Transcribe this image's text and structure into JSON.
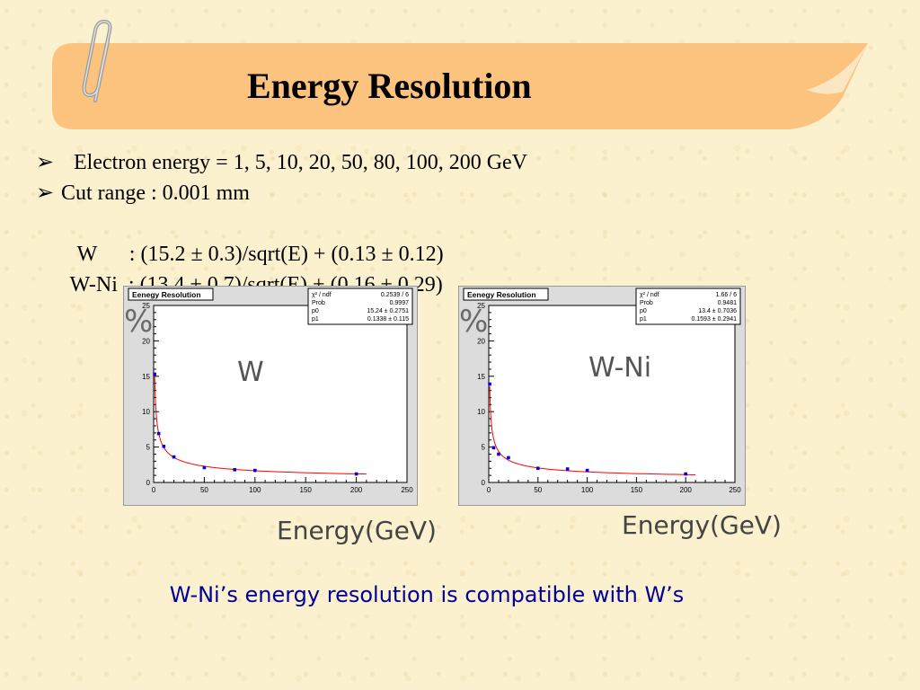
{
  "slide": {
    "title": "Energy Resolution",
    "colors": {
      "banner": "#fbc37e",
      "banner_fold": "#fbe6c4",
      "conclusion": "#000099",
      "fit_line": "#ff0000",
      "points": "#0000dd"
    },
    "bullets": [
      {
        "marker": "arrow",
        "text": "Electron energy =  1, 5, 10, 20, 50, 80, 100, 200 GeV"
      },
      {
        "marker": "arrow",
        "text": "Cut range : 0.001 mm"
      },
      {
        "marker": "none",
        "text": "W      : (15.2 ± 0.3)/sqrt(E) + (0.13 ± 0.12)"
      },
      {
        "marker": "none",
        "text": "W-Ni  : (13.4 ± 0.7)/sqrt(E) + (0.16 ± 0.29)"
      }
    ],
    "conclusion": "W-Ni’s energy resolution is compatible with W’s"
  },
  "chart_data": [
    {
      "type": "scatter",
      "title": "Eenegy Resolution",
      "annotation_material": "W",
      "y_unit_label": "%",
      "x_axis_caption": "Energy(GeV)",
      "xlim": [
        0,
        250
      ],
      "ylim": [
        0,
        25
      ],
      "xticks": [
        0,
        50,
        100,
        150,
        200,
        250
      ],
      "yticks": [
        0,
        5,
        10,
        15,
        20,
        25
      ],
      "stats": [
        {
          "label": "χ² / ndf",
          "value": "0.2539 / 6"
        },
        {
          "label": "Prob",
          "value": "0.9997"
        },
        {
          "label": "p0",
          "value": "15.24 ± 0.2751"
        },
        {
          "label": "p1",
          "value": "0.1338 ± 0.115"
        }
      ],
      "fit": {
        "p0": 15.24,
        "p1": 0.1338,
        "xrange": [
          1,
          210
        ]
      },
      "series": [
        {
          "x": [
            1,
            5,
            10,
            20,
            50,
            80,
            100,
            200
          ],
          "y": [
            15.3,
            6.9,
            5.1,
            3.6,
            2.1,
            1.8,
            1.7,
            1.2
          ]
        }
      ]
    },
    {
      "type": "scatter",
      "title": "Eenegy Resolution",
      "annotation_material": "W-Ni",
      "y_unit_label": "%",
      "x_axis_caption": "Energy(GeV)",
      "xlim": [
        0,
        250
      ],
      "ylim": [
        0,
        25
      ],
      "xticks": [
        0,
        50,
        100,
        150,
        200,
        250
      ],
      "yticks": [
        0,
        5,
        10,
        15,
        20,
        25
      ],
      "stats": [
        {
          "label": "χ² / ndf",
          "value": "1.66 / 6"
        },
        {
          "label": "Prob",
          "value": "0.9481"
        },
        {
          "label": "p0",
          "value": "13.4 ± 0.7036"
        },
        {
          "label": "p1",
          "value": "0.1593 ± 0.2941"
        }
      ],
      "fit": {
        "p0": 13.4,
        "p1": 0.1593,
        "xrange": [
          1,
          210
        ]
      },
      "series": [
        {
          "x": [
            1,
            5,
            10,
            20,
            50,
            80,
            100,
            200
          ],
          "y": [
            13.9,
            4.9,
            4.0,
            3.5,
            2.0,
            1.9,
            1.7,
            1.2
          ]
        }
      ]
    }
  ]
}
